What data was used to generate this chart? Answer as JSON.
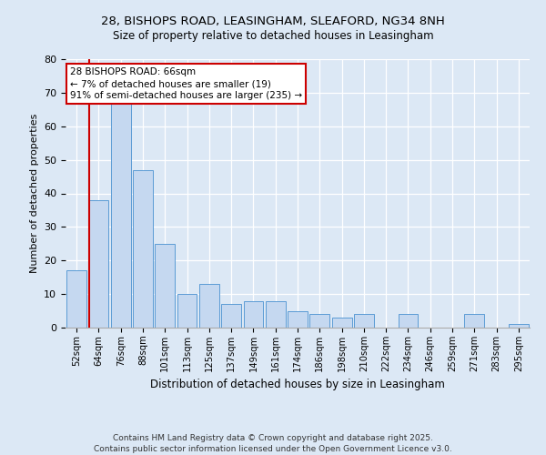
{
  "title1": "28, BISHOPS ROAD, LEASINGHAM, SLEAFORD, NG34 8NH",
  "title2": "Size of property relative to detached houses in Leasingham",
  "xlabel": "Distribution of detached houses by size in Leasingham",
  "ylabel": "Number of detached properties",
  "categories": [
    "52sqm",
    "64sqm",
    "76sqm",
    "88sqm",
    "101sqm",
    "113sqm",
    "125sqm",
    "137sqm",
    "149sqm",
    "161sqm",
    "174sqm",
    "186sqm",
    "198sqm",
    "210sqm",
    "222sqm",
    "234sqm",
    "246sqm",
    "259sqm",
    "271sqm",
    "283sqm",
    "295sqm"
  ],
  "values": [
    17,
    38,
    67,
    47,
    25,
    10,
    13,
    7,
    8,
    8,
    5,
    4,
    3,
    4,
    0,
    4,
    0,
    0,
    4,
    0,
    1
  ],
  "bar_color": "#c5d8f0",
  "bar_edge_color": "#5b9bd5",
  "vline_color": "#cc0000",
  "annotation_text": "28 BISHOPS ROAD: 66sqm\n← 7% of detached houses are smaller (19)\n91% of semi-detached houses are larger (235) →",
  "annotation_box_color": "#ffffff",
  "annotation_box_edge": "#cc0000",
  "ylim": [
    0,
    80
  ],
  "yticks": [
    0,
    10,
    20,
    30,
    40,
    50,
    60,
    70,
    80
  ],
  "footer1": "Contains HM Land Registry data © Crown copyright and database right 2025.",
  "footer2": "Contains public sector information licensed under the Open Government Licence v3.0.",
  "bg_color": "#dce8f5",
  "plot_bg_color": "#dce8f5"
}
